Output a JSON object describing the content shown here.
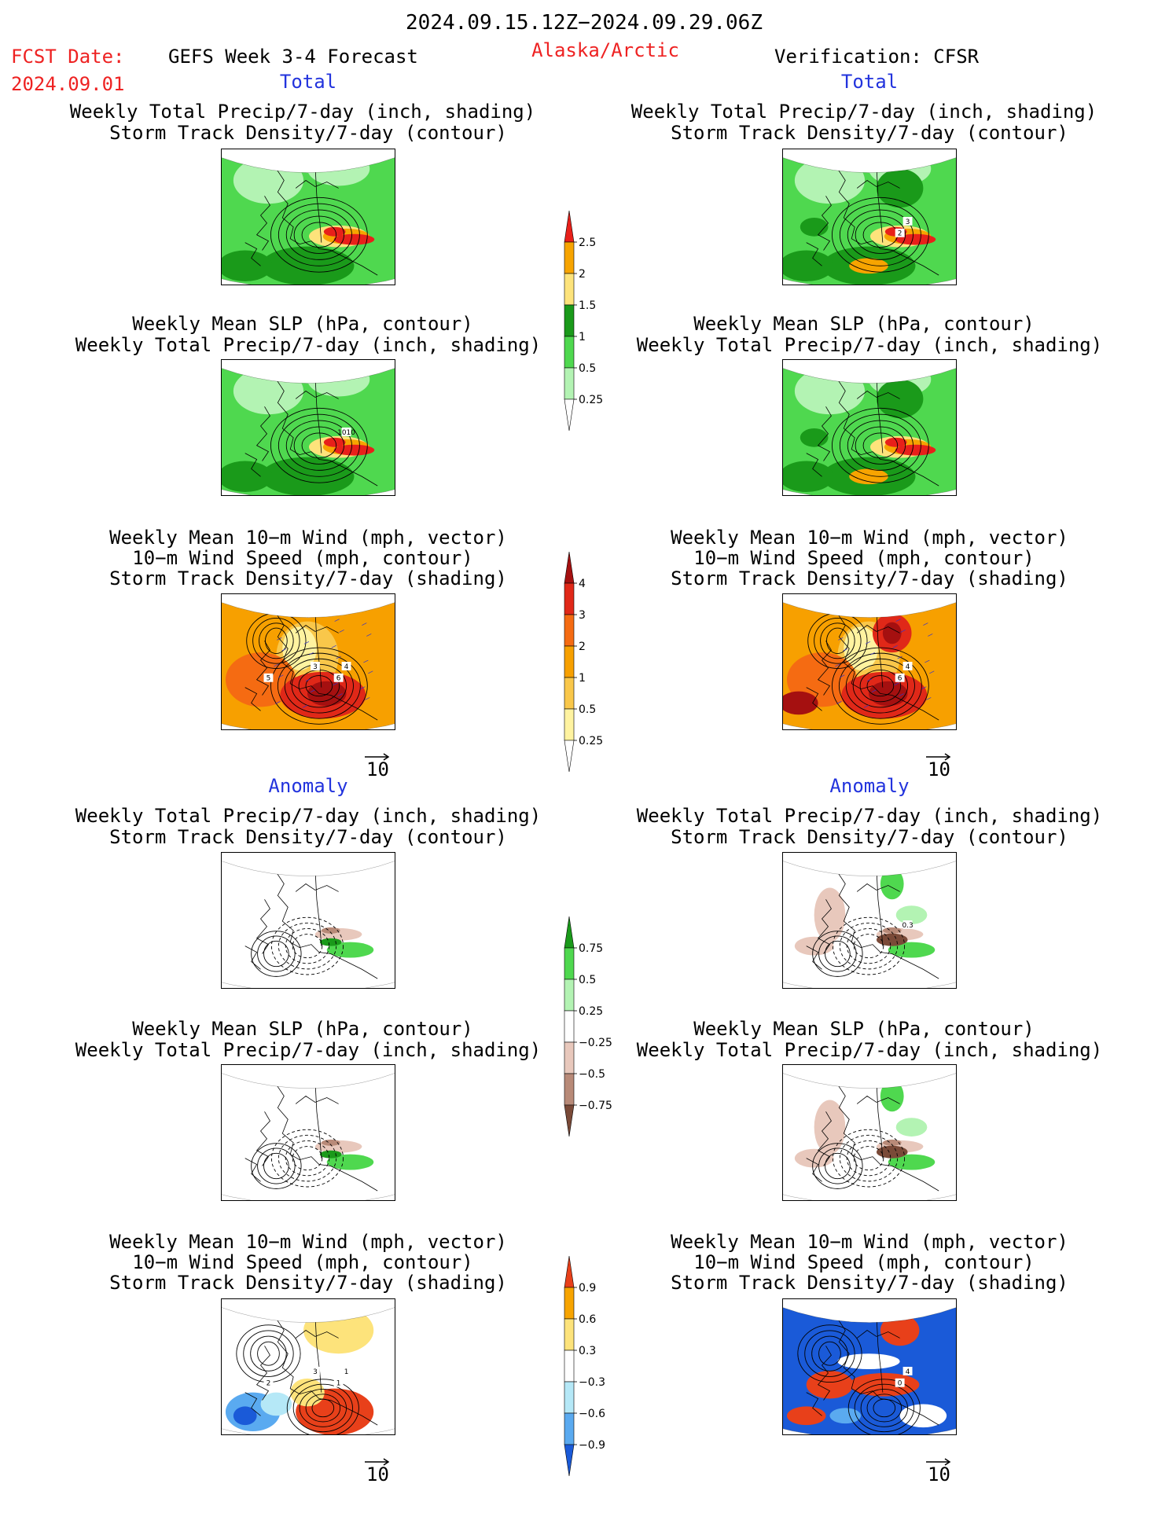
{
  "header": {
    "date_range": "2024.09.15.12Z−2024.09.29.06Z",
    "fcst_label": "FCST Date:",
    "fcst_date": "2024.09.01",
    "product": "GEFS Week 3-4 Forecast",
    "region": "Alaska/Arctic",
    "verification": "Verification: CFSR"
  },
  "sections": {
    "total": "Total",
    "anomaly": "Anomaly"
  },
  "titles": {
    "precip_track": [
      "Weekly Total Precip/7-day (inch, shading)",
      "Storm Track Density/7-day (contour)"
    ],
    "slp_precip": [
      "Weekly Mean SLP (hPa, contour)",
      "Weekly Total Precip/7-day (inch, shading)"
    ],
    "wind_track": [
      "Weekly Mean 10−m Wind (mph, vector)",
      "10−m Wind Speed (mph, contour)",
      "Storm Track Density/7-day (shading)"
    ]
  },
  "vector_ref": "10",
  "colorbars": {
    "precip_total": {
      "labels": [
        "2.5",
        "2",
        "1.5",
        "1",
        "0.5",
        "0.25"
      ],
      "colors": [
        "#e8201a",
        "#f7a400",
        "#fde37b",
        "#1a9a1a",
        "#4fd84f",
        "#b3f3b3",
        "#ffffff"
      ]
    },
    "track_total": {
      "labels": [
        "4",
        "3",
        "2",
        "1",
        "0.5",
        "0.25"
      ],
      "colors": [
        "#a51010",
        "#e02818",
        "#f56b12",
        "#f7a000",
        "#f9c74a",
        "#fff3a0",
        "#ffffff"
      ]
    },
    "precip_anom": {
      "labels": [
        "0.75",
        "0.5",
        "0.25",
        "−0.25",
        "−0.5",
        "−0.75"
      ],
      "colors": [
        "#1a9a1a",
        "#4fd84f",
        "#b3f3b3",
        "#ffffff",
        "#e8c8bc",
        "#b88a78",
        "#7a4a38"
      ]
    },
    "track_anom": {
      "labels": [
        "0.9",
        "0.6",
        "0.3",
        "−0.3",
        "−0.6",
        "−0.9"
      ],
      "colors": [
        "#e8401a",
        "#f7a400",
        "#fde37b",
        "#ffffff",
        "#b5e8f7",
        "#5aaaf0",
        "#1a5ad8"
      ]
    }
  },
  "contour_labels": {
    "p1_left": [],
    "p1_right": [
      "3",
      "2"
    ],
    "p2_left": [
      "1010"
    ],
    "p3_left": [
      "4",
      "6",
      "5",
      "3"
    ],
    "p3_right": [
      "4",
      "6"
    ],
    "p4_right": [
      "0.3"
    ],
    "p6_left": [
      "1",
      "1",
      "2",
      "3"
    ],
    "p6_right": [
      "4",
      "0"
    ]
  }
}
